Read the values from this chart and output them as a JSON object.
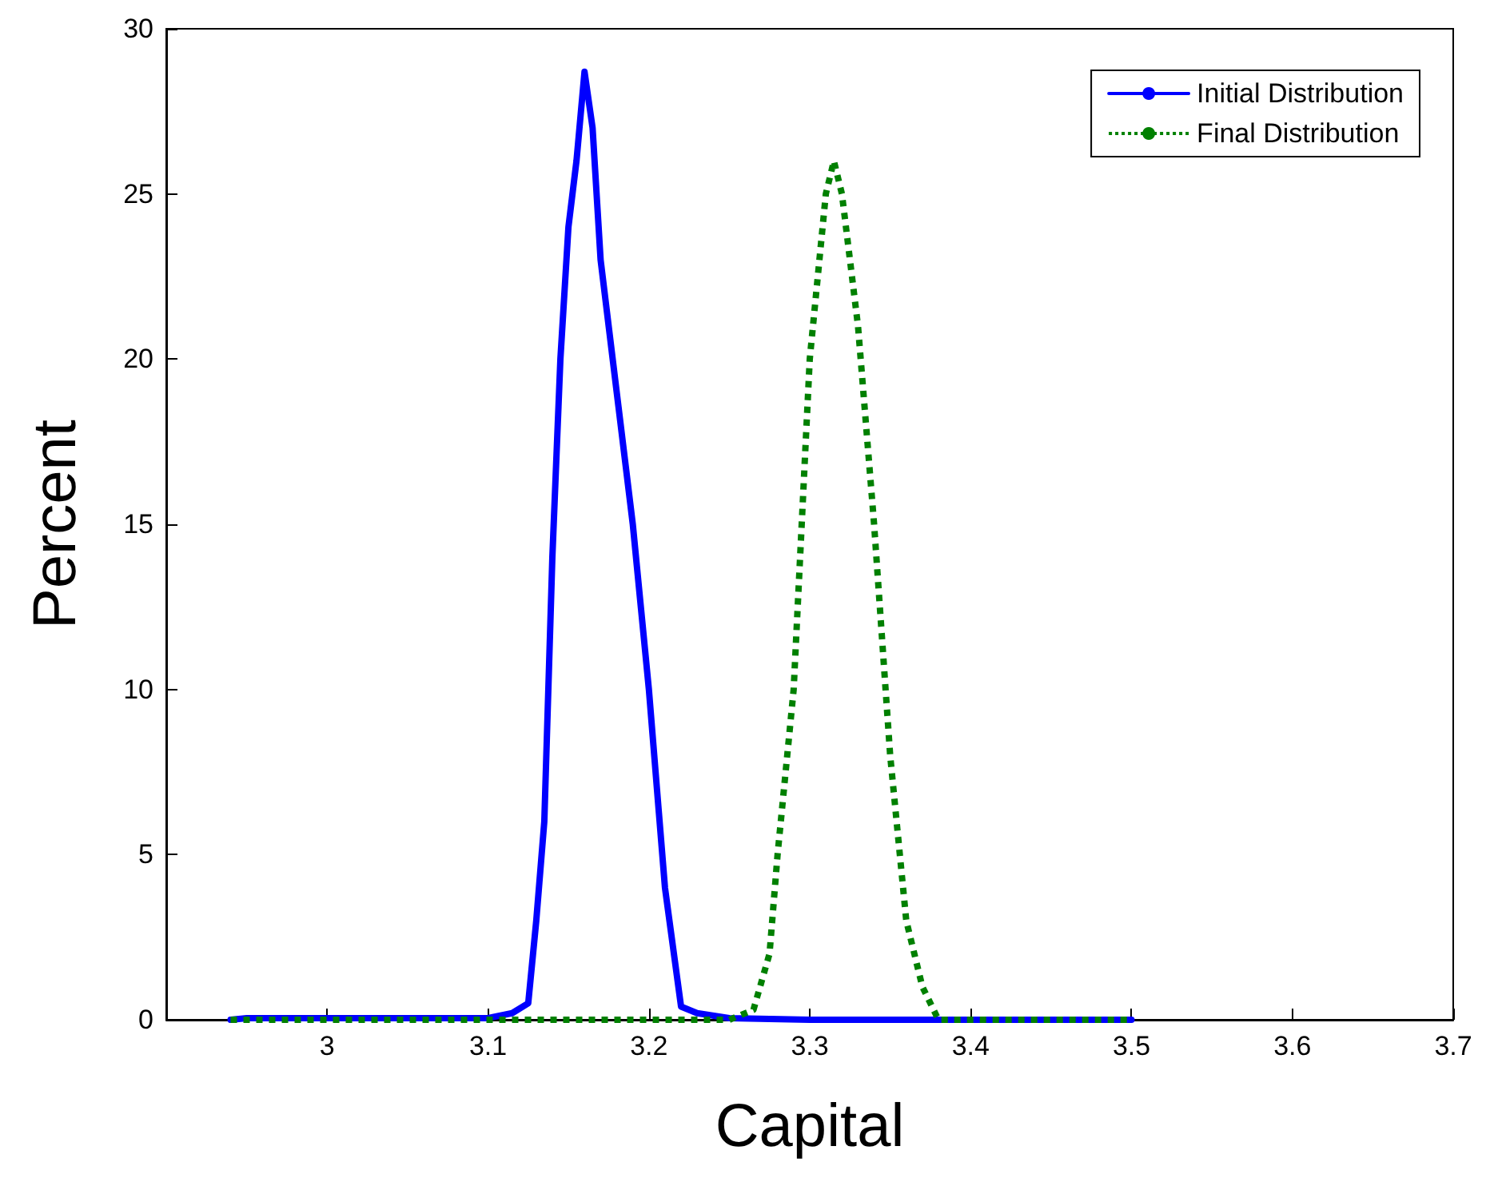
{
  "chart_data": {
    "type": "line",
    "xlabel": "Capital",
    "ylabel": "Percent",
    "xlim": [
      2.9,
      3.7
    ],
    "xticks": [
      3,
      3.1,
      3.2,
      3.3,
      3.4,
      3.5,
      3.6,
      3.7
    ],
    "ylim": [
      0,
      30
    ],
    "yticks": [
      0,
      5,
      10,
      15,
      20,
      25,
      30
    ],
    "grid": false,
    "legend": "top right",
    "marker": "none",
    "series": [
      {
        "name": "Initial Distribution",
        "color": "#0000ff",
        "line_style": "solid",
        "x": [
          2.94,
          2.95,
          3.0,
          3.1,
          3.115,
          3.125,
          3.13,
          3.135,
          3.14,
          3.145,
          3.15,
          3.155,
          3.16,
          3.165,
          3.17,
          3.18,
          3.19,
          3.2,
          3.21,
          3.22,
          3.23,
          3.25,
          3.3,
          3.5
        ],
        "values": [
          0,
          0.05,
          0.05,
          0.05,
          0.2,
          0.5,
          3,
          6,
          14,
          20,
          24,
          26,
          28.7,
          27,
          23,
          19,
          15,
          10,
          4,
          0.4,
          0.2,
          0.05,
          0,
          0
        ]
      },
      {
        "name": "Final Distribution",
        "color": "#008000",
        "line_style": "dotted",
        "x": [
          2.94,
          3.25,
          3.265,
          3.275,
          3.28,
          3.29,
          3.295,
          3.3,
          3.31,
          3.315,
          3.32,
          3.33,
          3.34,
          3.35,
          3.36,
          3.37,
          3.38,
          3.5
        ],
        "values": [
          0,
          0,
          0.3,
          2,
          5,
          10,
          15,
          20,
          25,
          26,
          25,
          21,
          15,
          8,
          3,
          1,
          0,
          0
        ]
      }
    ]
  }
}
